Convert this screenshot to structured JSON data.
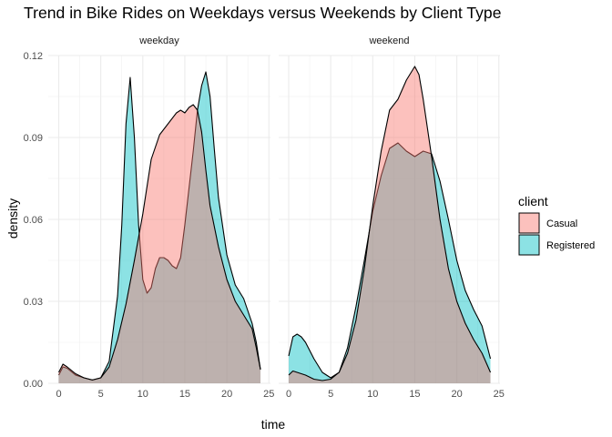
{
  "chart_data": {
    "type": "area",
    "title": "Trend in Bike Rides on Weekdays versus Weekends by Client Type",
    "xlabel": "time",
    "ylabel": "density",
    "xlim": [
      0,
      24
    ],
    "ylim": [
      0,
      0.12
    ],
    "x_ticks": [
      0,
      5,
      10,
      15,
      20,
      25
    ],
    "x_tick_labels": [
      "0",
      "5",
      "10",
      "15",
      "20",
      "25"
    ],
    "y_ticks": [
      0,
      0.03,
      0.06,
      0.09,
      0.12
    ],
    "y_tick_labels": [
      "0.00",
      "0.03",
      "0.06",
      "0.09",
      "0.12"
    ],
    "grid": true,
    "legend": {
      "title": "client",
      "position": "right",
      "entries": [
        {
          "label": "Casual",
          "color": "#F8766D"
        },
        {
          "label": "Registered",
          "color": "#00BFC4"
        }
      ]
    },
    "panels": [
      {
        "label": "weekday",
        "series": [
          {
            "name": "Registered",
            "color": "#00BFC4",
            "points": [
              [
                0,
                0.003
              ],
              [
                0.5,
                0.006
              ],
              [
                1,
                0.0055
              ],
              [
                2,
                0.003
              ],
              [
                3,
                0.002
              ],
              [
                4,
                0.0012
              ],
              [
                5,
                0.002
              ],
              [
                6,
                0.008
              ],
              [
                7,
                0.032
              ],
              [
                7.5,
                0.058
              ],
              [
                8,
                0.095
              ],
              [
                8.5,
                0.112
              ],
              [
                9,
                0.09
              ],
              [
                9.5,
                0.058
              ],
              [
                10,
                0.038
              ],
              [
                10.5,
                0.033
              ],
              [
                11,
                0.035
              ],
              [
                11.5,
                0.042
              ],
              [
                12,
                0.046
              ],
              [
                12.5,
                0.046
              ],
              [
                13,
                0.045
              ],
              [
                13.5,
                0.043
              ],
              [
                14,
                0.042
              ],
              [
                14.5,
                0.046
              ],
              [
                15,
                0.058
              ],
              [
                16,
                0.085
              ],
              [
                16.5,
                0.1
              ],
              [
                17,
                0.109
              ],
              [
                17.5,
                0.114
              ],
              [
                18,
                0.105
              ],
              [
                18.5,
                0.086
              ],
              [
                19,
                0.068
              ],
              [
                20,
                0.047
              ],
              [
                21,
                0.036
              ],
              [
                22,
                0.031
              ],
              [
                23,
                0.022
              ],
              [
                23.5,
                0.015
              ],
              [
                24,
                0.005
              ]
            ]
          },
          {
            "name": "Casual",
            "color": "#F8766D",
            "points": [
              [
                0,
                0.004
              ],
              [
                0.5,
                0.007
              ],
              [
                1,
                0.006
              ],
              [
                2,
                0.0035
              ],
              [
                3,
                0.002
              ],
              [
                4,
                0.0012
              ],
              [
                5,
                0.002
              ],
              [
                6,
                0.006
              ],
              [
                7,
                0.016
              ],
              [
                8,
                0.029
              ],
              [
                9,
                0.045
              ],
              [
                10,
                0.062
              ],
              [
                11,
                0.082
              ],
              [
                12,
                0.091
              ],
              [
                13,
                0.095
              ],
              [
                14,
                0.099
              ],
              [
                14.5,
                0.1
              ],
              [
                15,
                0.099
              ],
              [
                15.5,
                0.101
              ],
              [
                16,
                0.102
              ],
              [
                16.5,
                0.1
              ],
              [
                17,
                0.092
              ],
              [
                17.5,
                0.078
              ],
              [
                18,
                0.065
              ],
              [
                19,
                0.05
              ],
              [
                20,
                0.038
              ],
              [
                21,
                0.03
              ],
              [
                22,
                0.025
              ],
              [
                23,
                0.02
              ],
              [
                23.5,
                0.013
              ],
              [
                24,
                0.005
              ]
            ]
          }
        ]
      },
      {
        "label": "weekend",
        "series": [
          {
            "name": "Registered",
            "color": "#00BFC4",
            "points": [
              [
                0,
                0.01
              ],
              [
                0.5,
                0.017
              ],
              [
                1,
                0.018
              ],
              [
                1.5,
                0.017
              ],
              [
                2,
                0.015
              ],
              [
                3,
                0.009
              ],
              [
                4,
                0.004
              ],
              [
                5,
                0.002
              ],
              [
                6,
                0.004
              ],
              [
                7,
                0.013
              ],
              [
                8,
                0.028
              ],
              [
                9,
                0.045
              ],
              [
                10,
                0.063
              ],
              [
                11,
                0.076
              ],
              [
                12,
                0.086
              ],
              [
                13,
                0.088
              ],
              [
                14,
                0.085
              ],
              [
                15,
                0.083
              ],
              [
                16,
                0.085
              ],
              [
                17,
                0.084
              ],
              [
                18,
                0.074
              ],
              [
                19,
                0.06
              ],
              [
                20,
                0.045
              ],
              [
                21,
                0.034
              ],
              [
                22,
                0.027
              ],
              [
                23,
                0.021
              ],
              [
                24,
                0.009
              ]
            ]
          },
          {
            "name": "Casual",
            "color": "#F8766D",
            "points": [
              [
                0,
                0.003
              ],
              [
                0.5,
                0.0045
              ],
              [
                1,
                0.004
              ],
              [
                2,
                0.003
              ],
              [
                3,
                0.0015
              ],
              [
                4,
                0.001
              ],
              [
                5,
                0.0015
              ],
              [
                6,
                0.004
              ],
              [
                7,
                0.011
              ],
              [
                8,
                0.023
              ],
              [
                9,
                0.042
              ],
              [
                10,
                0.065
              ],
              [
                11,
                0.085
              ],
              [
                12,
                0.1
              ],
              [
                13,
                0.104
              ],
              [
                14,
                0.111
              ],
              [
                15,
                0.116
              ],
              [
                15.5,
                0.113
              ],
              [
                16,
                0.104
              ],
              [
                17,
                0.083
              ],
              [
                18,
                0.06
              ],
              [
                19,
                0.042
              ],
              [
                20,
                0.03
              ],
              [
                21,
                0.022
              ],
              [
                22,
                0.016
              ],
              [
                23,
                0.011
              ],
              [
                24,
                0.004
              ]
            ]
          }
        ]
      }
    ]
  }
}
